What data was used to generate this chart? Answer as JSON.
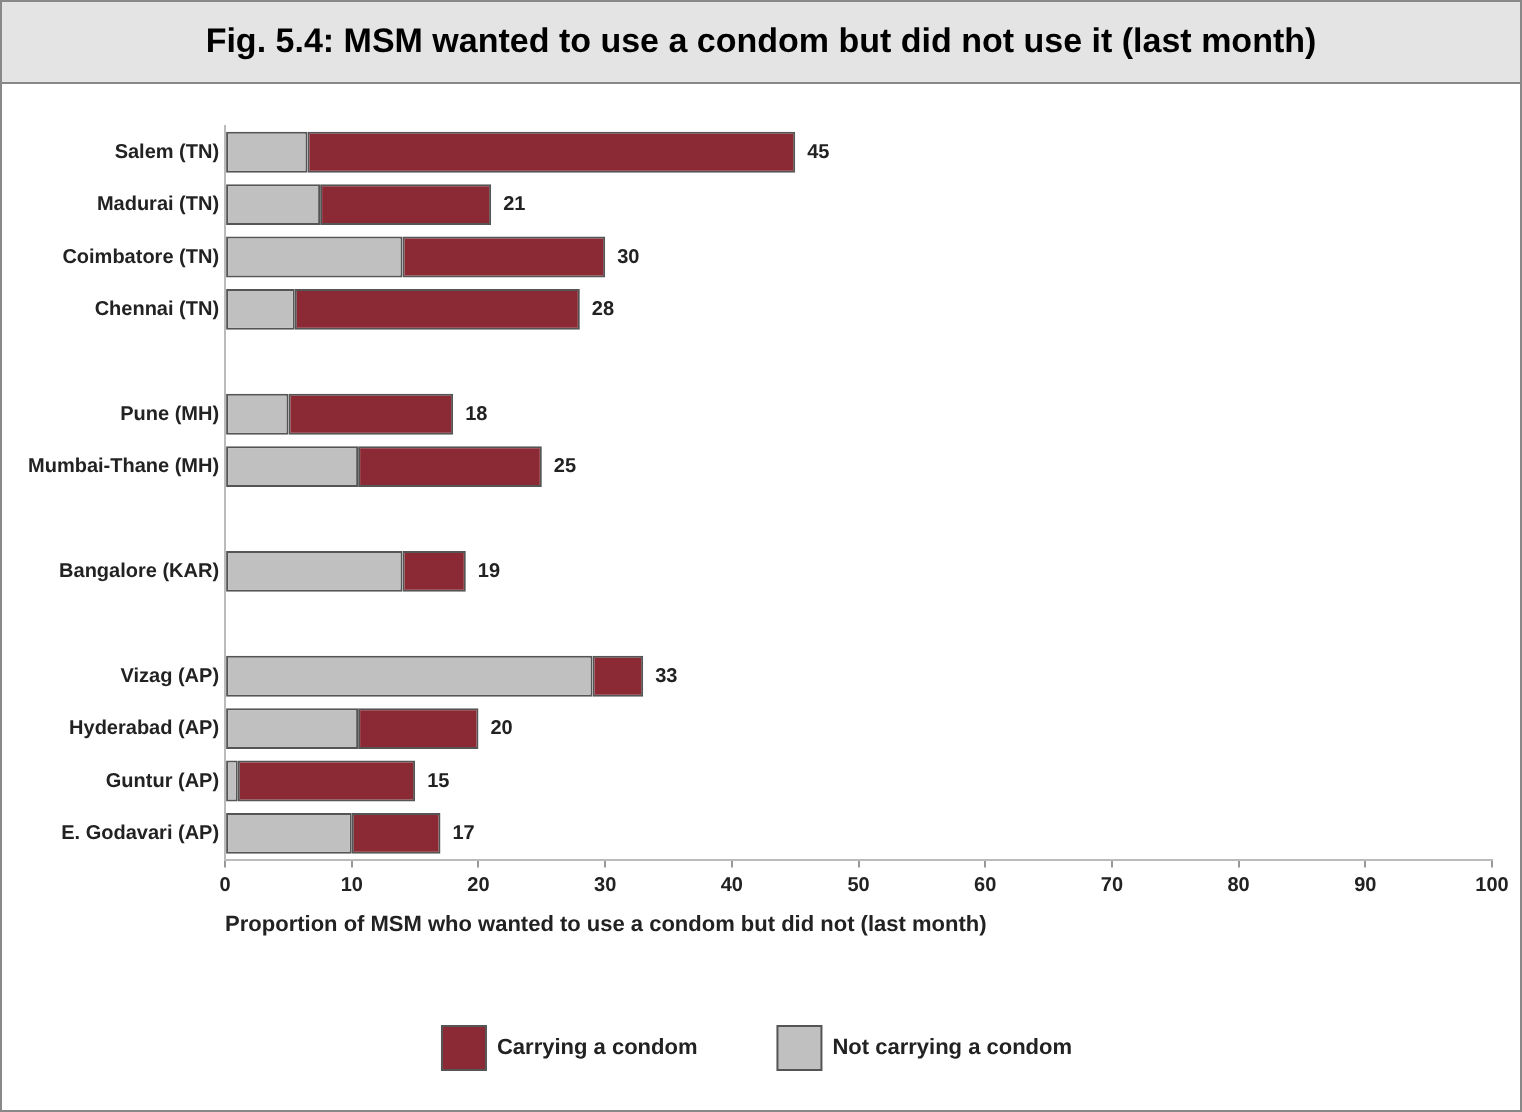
{
  "chart_data": {
    "type": "bar",
    "orientation": "horizontal",
    "stacked": true,
    "title": "Fig. 5.4: MSM wanted to use a condom but did not use it (last month)",
    "xlabel": "Proportion of MSM who wanted to use a condom but did not (last month)",
    "categories": [
      "Salem (TN)",
      "Madurai (TN)",
      "Coimbatore (TN)",
      "Chennai (TN)",
      null,
      "Pune (MH)",
      "Mumbai-Thane (MH)",
      null,
      "Bangalore (KAR)",
      null,
      "Vizag (AP)",
      "Hyderabad (AP)",
      "Guntur (AP)",
      "E. Godavari (AP)"
    ],
    "series": [
      {
        "name": "Not carrying a condom",
        "color": "#c0c0c0",
        "values": [
          6.5,
          7.5,
          14,
          5.5,
          null,
          5,
          10.5,
          null,
          14,
          null,
          29,
          10.5,
          1,
          10
        ]
      },
      {
        "name": "Carrying a condom",
        "color": "#8b2a35",
        "values": [
          38.5,
          13.5,
          16,
          22.5,
          null,
          13,
          14.5,
          null,
          5,
          null,
          4,
          9.5,
          14,
          7
        ]
      }
    ],
    "totals": [
      "45",
      "21",
      "30",
      "28",
      null,
      "18",
      "25",
      null,
      "19",
      null,
      "33",
      "20",
      "15",
      "17"
    ],
    "xlim": [
      0,
      100
    ],
    "xticks": [
      0,
      10,
      20,
      30,
      40,
      50,
      60,
      70,
      80,
      90,
      100
    ],
    "grid": false,
    "legend": "bottom"
  }
}
